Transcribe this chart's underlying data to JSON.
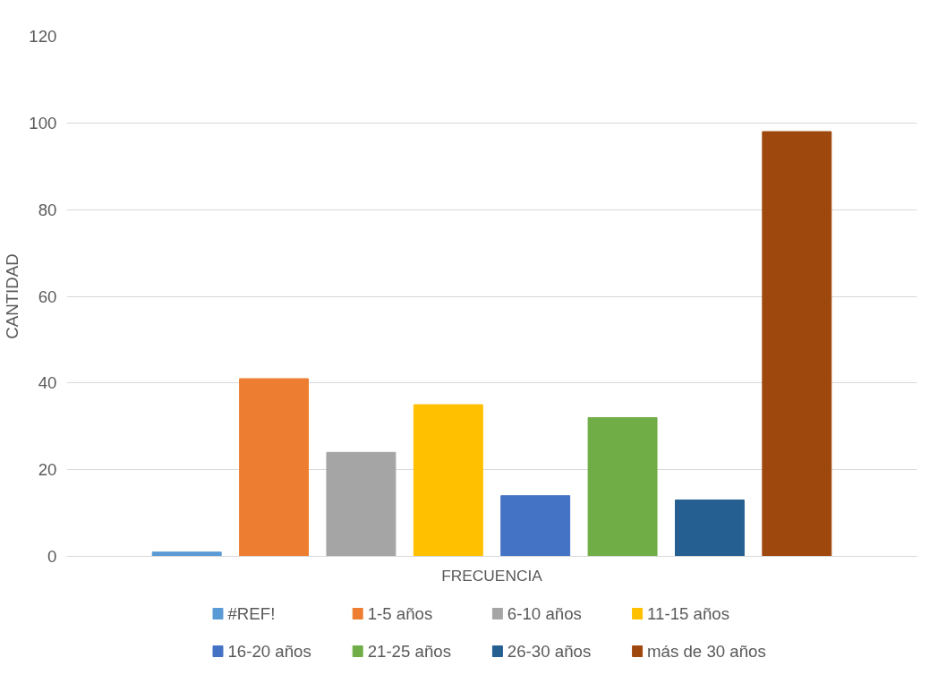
{
  "chart_data": {
    "type": "bar",
    "xlabel": "FRECUENCIA",
    "ylabel": "CANTIDAD",
    "categories": [
      null
    ],
    "series": [
      {
        "name": "#REF!",
        "color": "#5b9bd5",
        "values": [
          1
        ]
      },
      {
        "name": "1-5 años",
        "color": "#ed7d31",
        "values": [
          41
        ]
      },
      {
        "name": "6-10 años",
        "color": "#a5a5a5",
        "values": [
          24
        ]
      },
      {
        "name": "11-15 años",
        "color": "#ffc000",
        "values": [
          35
        ]
      },
      {
        "name": "16-20 años",
        "color": "#4472c4",
        "values": [
          14
        ]
      },
      {
        "name": "21-25 años",
        "color": "#70ad47",
        "values": [
          32
        ]
      },
      {
        "name": "26-30 años",
        "color": "#255e91",
        "values": [
          13
        ]
      },
      {
        "name": "más de 30 años",
        "color": "#9e480e",
        "values": [
          98
        ]
      }
    ],
    "ylim": [
      0,
      120
    ],
    "yticks": [
      0,
      20,
      40,
      60,
      80,
      100,
      120
    ],
    "grid": "y",
    "legend": "bottom"
  }
}
